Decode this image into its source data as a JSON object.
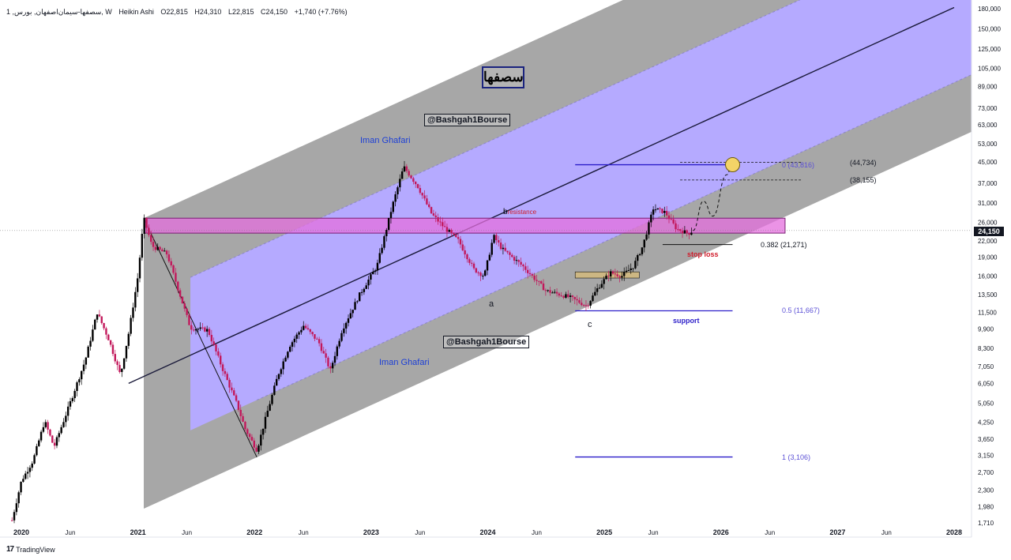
{
  "header": {
    "symbol": "1 ,سصفها-سیمان‌اصفهان, بورس, W",
    "chart_style": "Heikin Ashi",
    "open": "O22,815",
    "high": "H24,310",
    "low": "L22,815",
    "close": "C24,150",
    "change": "+1,740 (+7.76%)"
  },
  "current_price": "24,150",
  "title_box": "سصفها",
  "watermark": "@Bashgah1Bourse",
  "author": "Iman Ghafari",
  "brand": "TradingView",
  "colors": {
    "channel_gray": "#a7a7a7",
    "channel_purple": "#b5aaff",
    "resistance": "#e46fdd",
    "fib_line": "#2c1ec9",
    "candle_up": "#000000",
    "candle_down": "#c2185b"
  },
  "annotations": {
    "resistance": "resistance",
    "resistance_prefix": "b",
    "stop_loss": "stop loss",
    "support": "support",
    "wave_a": "a",
    "wave_c": "c",
    "fib_0": "0 (43,816)",
    "fib_0382": "0.382 (21,271)",
    "fib_05": "0.5 (11,667)",
    "fib_1": "1 (3,106)",
    "target_1": "(44,734)",
    "target_2": "(38,155)"
  },
  "chart_data": {
    "type": "candlestick",
    "yscale": "log",
    "ylim": [
      1600,
      185000
    ],
    "y_ticks": [
      "180,000",
      "150,000",
      "125,000",
      "105,000",
      "89,000",
      "73,000",
      "63,000",
      "53,000",
      "45,000",
      "37,000",
      "31,000",
      "26,000",
      "22,000",
      "19,000",
      "16,000",
      "13,500",
      "11,500",
      "9,900",
      "8,300",
      "7,050",
      "6,050",
      "5,050",
      "4,250",
      "3,650",
      "3,150",
      "2,700",
      "2,300",
      "1,980",
      "1,710"
    ],
    "x_ticks": [
      "2020",
      "Jun",
      "2021",
      "Jun",
      "2022",
      "Jun",
      "2023",
      "Jun",
      "2024",
      "Jun",
      "2025",
      "Jun",
      "2026",
      "Jun",
      "2027",
      "Jun",
      "2028"
    ],
    "x_tick_dates": [
      2020.0,
      2020.42,
      2021.0,
      2021.42,
      2022.0,
      2022.42,
      2023.0,
      2023.42,
      2024.0,
      2024.42,
      2025.0,
      2025.42,
      2026.0,
      2026.42,
      2027.0,
      2027.42,
      2028.0
    ],
    "price_path": [
      [
        2019.92,
        1750
      ],
      [
        2020.0,
        2500
      ],
      [
        2020.1,
        3000
      ],
      [
        2020.2,
        4300
      ],
      [
        2020.28,
        3400
      ],
      [
        2020.4,
        4800
      ],
      [
        2020.55,
        7500
      ],
      [
        2020.65,
        11500
      ],
      [
        2020.75,
        9000
      ],
      [
        2020.85,
        6500
      ],
      [
        2020.92,
        9500
      ],
      [
        2021.0,
        16000
      ],
      [
        2021.05,
        27000
      ],
      [
        2021.12,
        21000
      ],
      [
        2021.25,
        19500
      ],
      [
        2021.45,
        10000
      ],
      [
        2021.6,
        9800
      ],
      [
        2021.72,
        7000
      ],
      [
        2021.85,
        5000
      ],
      [
        2021.92,
        4000
      ],
      [
        2022.02,
        3300
      ],
      [
        2022.1,
        4500
      ],
      [
        2022.2,
        6500
      ],
      [
        2022.3,
        8500
      ],
      [
        2022.42,
        10200
      ],
      [
        2022.55,
        8800
      ],
      [
        2022.65,
        6800
      ],
      [
        2022.75,
        9800
      ],
      [
        2022.9,
        13500
      ],
      [
        2023.05,
        17500
      ],
      [
        2023.18,
        30000
      ],
      [
        2023.28,
        43000
      ],
      [
        2023.4,
        36000
      ],
      [
        2023.52,
        28000
      ],
      [
        2023.62,
        25000
      ],
      [
        2023.75,
        22000
      ],
      [
        2023.88,
        17000
      ],
      [
        2023.97,
        16000
      ],
      [
        2024.05,
        23000
      ],
      [
        2024.12,
        20500
      ],
      [
        2024.3,
        17500
      ],
      [
        2024.5,
        14000
      ],
      [
        2024.7,
        13200
      ],
      [
        2024.85,
        12200
      ],
      [
        2024.95,
        14500
      ],
      [
        2025.05,
        16500
      ],
      [
        2025.15,
        16000
      ],
      [
        2025.25,
        17500
      ],
      [
        2025.33,
        21000
      ],
      [
        2025.42,
        29500
      ],
      [
        2025.52,
        28500
      ],
      [
        2025.62,
        24500
      ],
      [
        2025.72,
        23500
      ],
      [
        2025.76,
        24150
      ]
    ],
    "projection": [
      [
        2025.76,
        24150
      ],
      [
        2025.85,
        31500
      ],
      [
        2025.93,
        27500
      ],
      [
        2026.05,
        40000
      ],
      [
        2026.1,
        44734
      ]
    ],
    "levels": [
      {
        "name": "resistance",
        "price": 25000
      },
      {
        "name": "fib_0",
        "price": 43816
      },
      {
        "name": "fib_0382",
        "price": 21271
      },
      {
        "name": "fib_05",
        "price": 11667
      },
      {
        "name": "fib_1",
        "price": 3106
      },
      {
        "name": "target_1",
        "price": 44734
      },
      {
        "name": "target_2",
        "price": 38155
      }
    ],
    "channel": {
      "mid_line": [
        [
          2020.92,
          6050
        ],
        [
          2028.0,
          182000
        ]
      ],
      "inner_upper_start": [
        2021.45,
        15800
      ],
      "inner_lower_start": [
        2022.02,
        5200
      ],
      "outer_upper_start": [
        2021.05,
        27000
      ],
      "outer_lower_start": [
        2022.02,
        3100
      ]
    },
    "title": "",
    "xlabel": "",
    "ylabel": ""
  }
}
